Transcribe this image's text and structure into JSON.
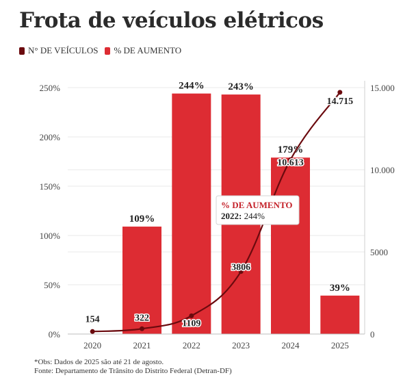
{
  "title": "Frota de veículos elétricos",
  "legend": [
    {
      "label": "N° DE VEÍCULOS",
      "color": "#6b0a0e"
    },
    {
      "label": "% DE AUMENTO",
      "color": "#dd2c33"
    }
  ],
  "tooltip": {
    "title": "% DE AUMENTO",
    "category": "2022",
    "value": "244%"
  },
  "footer": {
    "note": "*Obs: Dados de 2025 são até 21 de agosto.",
    "source": "Fonte: Departamento de Trânsito do Distrito Federal (Detran-DF)"
  },
  "chart_data": {
    "type": "bar",
    "categories": [
      "2020",
      "2021",
      "2022",
      "2023",
      "2024",
      "2025"
    ],
    "series": [
      {
        "name": "% DE AUMENTO",
        "type": "bar",
        "axis": "left",
        "color": "#dd2c33",
        "values": [
          null,
          109,
          244,
          243,
          179,
          39
        ],
        "labels": [
          "",
          "109%",
          "244%",
          "243%",
          "179%",
          "39%"
        ]
      },
      {
        "name": "N° DE VEÍCULOS",
        "type": "line",
        "axis": "right",
        "color": "#6b0a0e",
        "values": [
          154,
          322,
          1109,
          3806,
          10613,
          14715
        ],
        "labels": [
          "154",
          "322",
          "1109",
          "3806",
          "10.613",
          "14.715"
        ]
      }
    ],
    "y_left": {
      "min": 0,
      "max": 250,
      "ticks": [
        0,
        50,
        100,
        150,
        200,
        250
      ],
      "tick_labels": [
        "0%",
        "50%",
        "100%",
        "150%",
        "200%",
        "250%"
      ]
    },
    "y_right": {
      "min": 0,
      "max": 15000,
      "ticks": [
        0,
        5000,
        10000,
        15000
      ],
      "tick_labels": [
        "0",
        "5000",
        "10.000",
        "15.000"
      ]
    },
    "grid": true,
    "legend_position": "top-left"
  }
}
